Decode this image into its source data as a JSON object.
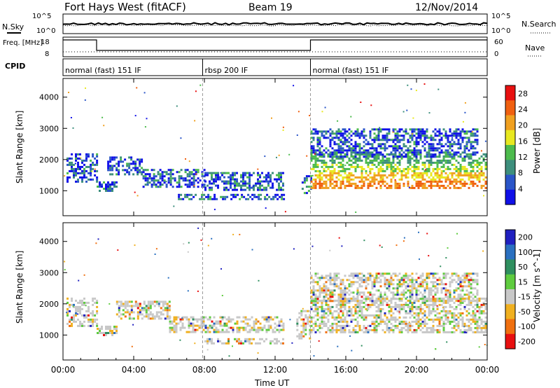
{
  "header": {
    "title": "Fort Hays West (fitACF)",
    "beam": "Beam 19",
    "date": "12/Nov/2014"
  },
  "status_panels": {
    "left_labels": [
      "N.Sky",
      "Freq. [MHz]",
      "CPID"
    ],
    "right_labels": [
      "N.Search",
      "Nave"
    ],
    "noise_ticks_left": [
      "10^5",
      "10^0"
    ],
    "noise_ticks_right": [
      "10^5",
      "10^0"
    ],
    "freq_ticks": [
      "18",
      "8"
    ],
    "nave_ticks": [
      "60",
      "0"
    ],
    "cpid_segments": [
      {
        "label": "normal (fast) 151 IF",
        "start_h": 0,
        "end_h": 7.9
      },
      {
        "label": "rbsp 200 IF",
        "start_h": 7.9,
        "end_h": 14.0
      },
      {
        "label": "normal (fast) 151 IF",
        "start_h": 14.0,
        "end_h": 24
      }
    ],
    "freq_steps": [
      {
        "start_h": 0,
        "end_h": 1.9,
        "level": "high"
      },
      {
        "start_h": 1.9,
        "end_h": 14.0,
        "level": "low"
      },
      {
        "start_h": 14.0,
        "end_h": 24,
        "level": "high"
      }
    ]
  },
  "chart_data": [
    {
      "type": "heatmap",
      "name": "power",
      "xlabel": "",
      "ylabel": "Slant Range [km]",
      "xlim": [
        0,
        24
      ],
      "ylim": [
        200,
        4600
      ],
      "yticks": [
        "1000",
        "2000",
        "3000",
        "4000"
      ],
      "colorbar": {
        "label": "Power [dB]",
        "ticks": [
          "4",
          "8",
          "12",
          "16",
          "20",
          "24",
          "28"
        ],
        "range": [
          0,
          30
        ],
        "colors": [
          "#1010e8",
          "#2a55c8",
          "#3d8f7d",
          "#4dbb4d",
          "#e8e820",
          "#f0a020",
          "#f06010",
          "#e81010"
        ]
      },
      "echo_regions": [
        {
          "t0": 0.2,
          "t1": 1.9,
          "r0": 1300,
          "r1": 2200
        },
        {
          "t0": 1.9,
          "t1": 3.0,
          "r0": 1000,
          "r1": 1300
        },
        {
          "t0": 2.5,
          "t1": 4.5,
          "r0": 1500,
          "r1": 2100
        },
        {
          "t0": 4.5,
          "t1": 8.0,
          "r0": 1100,
          "r1": 1700
        },
        {
          "t0": 8.0,
          "t1": 12.5,
          "r0": 1000,
          "r1": 1600
        },
        {
          "t0": 6.5,
          "t1": 12.5,
          "r0": 700,
          "r1": 900
        },
        {
          "t0": 13.5,
          "t1": 14.0,
          "r0": 900,
          "r1": 1500
        },
        {
          "t0": 14.0,
          "t1": 24.0,
          "r0": 1100,
          "r1": 2200
        },
        {
          "t0": 14.0,
          "t1": 23.5,
          "r0": 2100,
          "r1": 3000
        }
      ]
    },
    {
      "type": "heatmap",
      "name": "velocity",
      "xlabel": "Time UT",
      "ylabel": "Slant Range [km]",
      "xlim": [
        0,
        24
      ],
      "ylim": [
        200,
        4600
      ],
      "yticks": [
        "1000",
        "2000",
        "3000",
        "4000"
      ],
      "xticks": [
        "00:00",
        "04:00",
        "08:00",
        "12:00",
        "16:00",
        "20:00",
        "00:00"
      ],
      "colorbar": {
        "label": "Velocity [m s^-1]",
        "ticks": [
          "200",
          "100",
          "50",
          "15",
          "-15",
          "-50",
          "-100",
          "-200"
        ],
        "colors": [
          "#2020c0",
          "#2a70c0",
          "#2f8f5f",
          "#5fcc3f",
          "#c8c8c8",
          "#f0b020",
          "#f07010",
          "#e81010"
        ]
      },
      "echo_regions": [
        {
          "t0": 0.2,
          "t1": 1.9,
          "r0": 1300,
          "r1": 2200
        },
        {
          "t0": 1.9,
          "t1": 3.0,
          "r0": 1000,
          "r1": 1300
        },
        {
          "t0": 3.0,
          "t1": 6.0,
          "r0": 1500,
          "r1": 2100
        },
        {
          "t0": 6.0,
          "t1": 12.5,
          "r0": 1100,
          "r1": 1600
        },
        {
          "t0": 8.0,
          "t1": 12.5,
          "r0": 700,
          "r1": 900
        },
        {
          "t0": 13.2,
          "t1": 14.0,
          "r0": 900,
          "r1": 1800
        },
        {
          "t0": 14.0,
          "t1": 24.0,
          "r0": 1100,
          "r1": 2200
        },
        {
          "t0": 14.0,
          "t1": 23.5,
          "r0": 2100,
          "r1": 3000
        }
      ]
    }
  ]
}
